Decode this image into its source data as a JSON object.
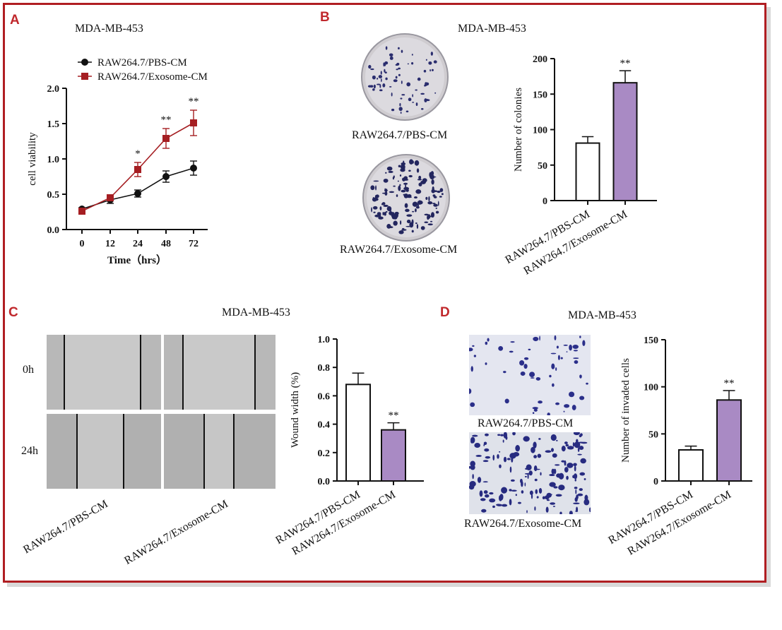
{
  "panels": {
    "A": {
      "letter": "A",
      "title": "MDA-MB-453"
    },
    "B": {
      "letter": "B",
      "title": "MDA-MB-453",
      "dish_labels": [
        "RAW264.7/PBS-CM",
        "RAW264.7/Exosome-CM"
      ]
    },
    "C": {
      "letter": "C",
      "title": "MDA-MB-453",
      "row_labels": [
        "0h",
        "24h"
      ],
      "col_labels": [
        "RAW264.7/PBS-CM",
        "RAW264.7/Exosome-CM"
      ]
    },
    "D": {
      "letter": "D",
      "title": "MDA-MB-453",
      "image_labels": [
        "RAW264.7/PBS-CM",
        "RAW264.7/Exosome-CM"
      ]
    }
  },
  "chart_data": [
    {
      "type": "line",
      "panel": "A",
      "title": "MDA-MB-453",
      "xlabel": "Time（hrs）",
      "ylabel": "cell viability",
      "categories": [
        "0",
        "12",
        "24",
        "48",
        "72"
      ],
      "ylim": [
        0,
        2.0
      ],
      "yticks": [
        "0.0",
        "0.5",
        "1.0",
        "1.5",
        "2.0"
      ],
      "legend_position": "top-left",
      "series": [
        {
          "name": "RAW264.7/PBS-CM",
          "color": "#111111",
          "marker": "circle",
          "values": [
            0.29,
            0.42,
            0.51,
            0.75,
            0.87
          ],
          "errors": [
            0.02,
            0.05,
            0.05,
            0.08,
            0.1
          ],
          "annotations": [
            "",
            "",
            "",
            "",
            ""
          ]
        },
        {
          "name": "RAW264.7/Exosome-CM",
          "color": "#a51e22",
          "marker": "square",
          "values": [
            0.26,
            0.45,
            0.85,
            1.29,
            1.51
          ],
          "errors": [
            0.02,
            0.03,
            0.1,
            0.14,
            0.18
          ],
          "annotations": [
            "",
            "",
            "*",
            "**",
            "**"
          ]
        }
      ]
    },
    {
      "type": "bar",
      "panel": "B",
      "ylabel": "Number of colonies",
      "categories": [
        "RAW264.7/PBS-CM",
        "RAW264.7/Exosome-CM"
      ],
      "values": [
        81,
        166
      ],
      "errors": [
        9,
        17
      ],
      "fills": [
        "#ffffff",
        "#a98ac4"
      ],
      "annotations": [
        "",
        "**"
      ],
      "ylim": [
        0,
        200
      ],
      "yticks": [
        "0",
        "50",
        "100",
        "150",
        "200"
      ]
    },
    {
      "type": "bar",
      "panel": "C",
      "ylabel": "Wound width (%)",
      "categories": [
        "RAW264.7/PBS-CM",
        "RAW264.7/Exosome-CM"
      ],
      "values": [
        0.68,
        0.36
      ],
      "errors": [
        0.08,
        0.05
      ],
      "fills": [
        "#ffffff",
        "#a98ac4"
      ],
      "annotations": [
        "",
        "**"
      ],
      "ylim": [
        0,
        1.0
      ],
      "yticks": [
        "0.0",
        "0.2",
        "0.4",
        "0.6",
        "0.8",
        "1.0"
      ]
    },
    {
      "type": "bar",
      "panel": "D",
      "ylabel": "Number of invaded cells",
      "categories": [
        "RAW264.7/PBS-CM",
        "RAW264.7/Exosome-CM"
      ],
      "values": [
        33,
        86
      ],
      "errors": [
        4,
        10
      ],
      "fills": [
        "#ffffff",
        "#a98ac4"
      ],
      "annotations": [
        "",
        "**"
      ],
      "ylim": [
        0,
        150
      ],
      "yticks": [
        "0",
        "50",
        "100",
        "150"
      ]
    }
  ]
}
